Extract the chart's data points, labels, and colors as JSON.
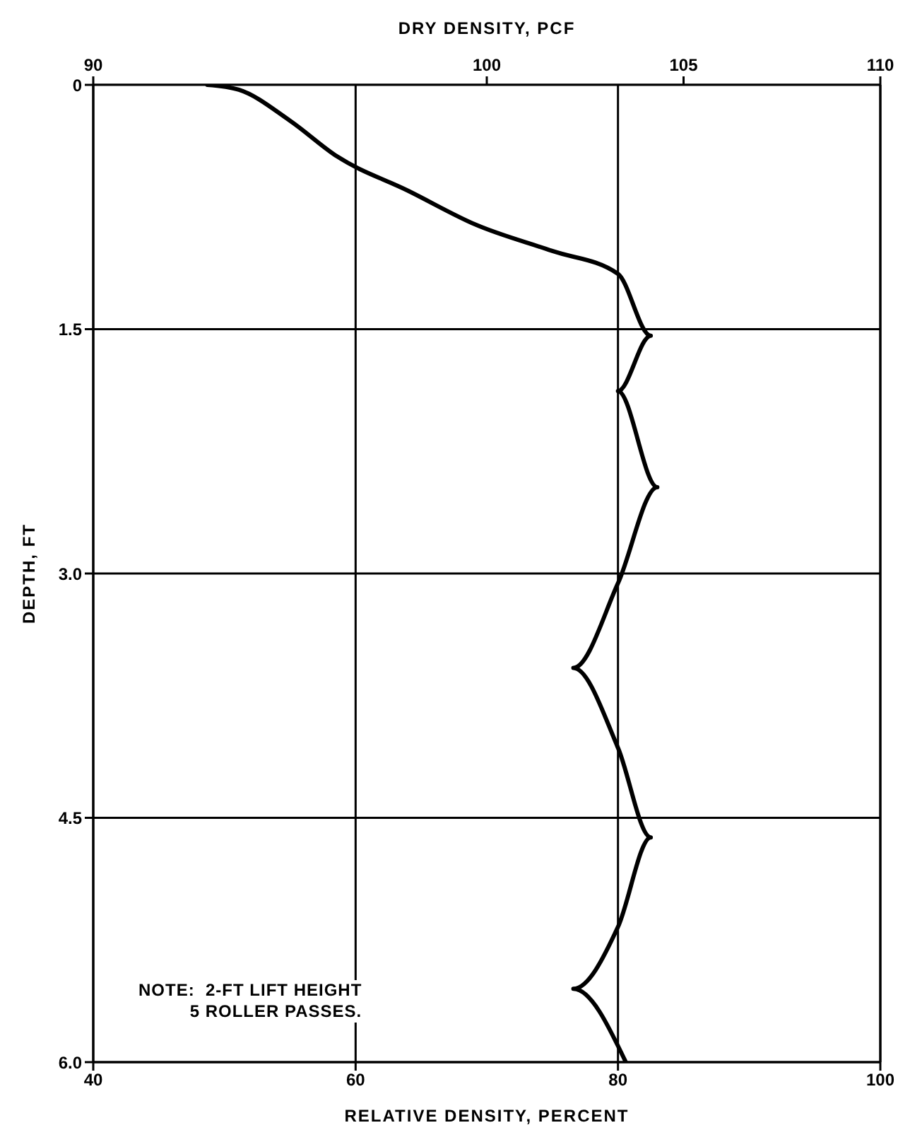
{
  "chart_data": {
    "type": "line",
    "xlabel": "RELATIVE DENSITY, PERCENT",
    "x2label": "DRY DENSITY, PCF",
    "ylabel": "DEPTH, FT",
    "xlim": [
      40,
      100
    ],
    "xticks": [
      40,
      60,
      80,
      100
    ],
    "x2lim": [
      90,
      110
    ],
    "x2ticks": [
      90,
      100,
      105,
      110
    ],
    "ylim": [
      6,
      0
    ],
    "yticks": [
      0,
      1.5,
      {
        "value": 3,
        "label": "3.0"
      },
      4.5,
      {
        "value": 6,
        "label": "6.0"
      }
    ],
    "grid": true,
    "marker": "none",
    "line_style": "solid",
    "annotations": [
      "NOTE:  2-FT LIFT HEIGHT\n5 ROLLER PASSES."
    ],
    "series": [
      {
        "color": "#000000",
        "x": [
          48.7,
          51.1,
          55,
          58.6,
          64,
          69.2,
          75,
          80,
          82.5,
          80,
          83,
          80,
          76.6,
          80,
          82.5,
          80,
          76.6,
          80.6
        ],
        "values": [
          0,
          0.03,
          0.22,
          0.44,
          0.65,
          0.86,
          1.02,
          1.16,
          1.54,
          1.88,
          2.47,
          3.06,
          3.58,
          4.07,
          4.62,
          5.17,
          5.55,
          6
        ]
      }
    ]
  }
}
